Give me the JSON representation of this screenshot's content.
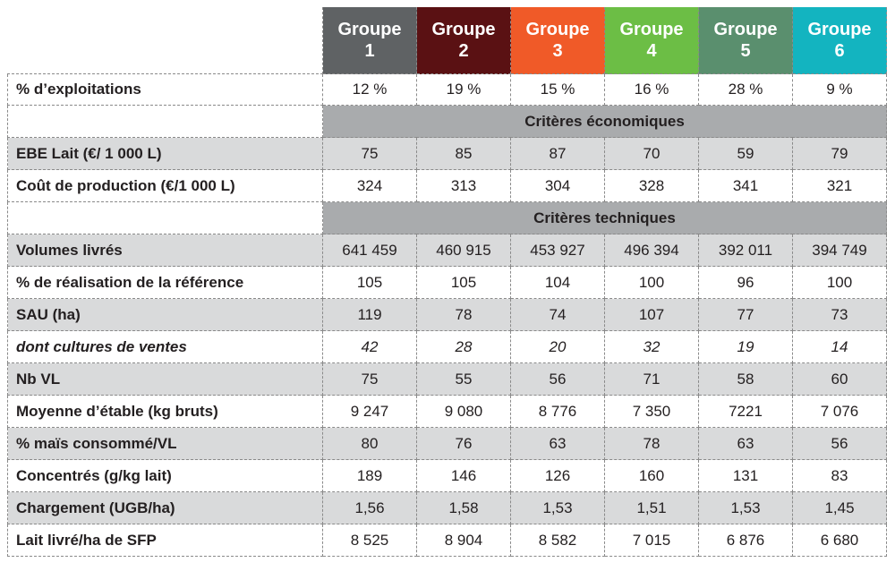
{
  "groups": [
    {
      "label": "Groupe 1",
      "line1": "Groupe",
      "line2": "1",
      "color": "#5f6264"
    },
    {
      "label": "Groupe 2",
      "line1": "Groupe",
      "line2": "2",
      "color": "#5a1113"
    },
    {
      "label": "Groupe 3",
      "line1": "Groupe",
      "line2": "3",
      "color": "#f05a28"
    },
    {
      "label": "Groupe 4",
      "line1": "Groupe",
      "line2": "4",
      "color": "#6cbe45"
    },
    {
      "label": "Groupe 5",
      "line1": "Groupe",
      "line2": "5",
      "color": "#5a8f6e"
    },
    {
      "label": "Groupe 6",
      "line1": "Groupe",
      "line2": "6",
      "color": "#13b4c0"
    }
  ],
  "rows": [
    {
      "type": "data",
      "label": "% d’exploitations",
      "values": [
        "12 %",
        "19 %",
        "15 %",
        "16 %",
        "28 %",
        "9 %"
      ],
      "grey": false
    },
    {
      "type": "section",
      "label": "Critères économiques"
    },
    {
      "type": "data",
      "label": "EBE Lait (€/ 1 000 L)",
      "values": [
        "75",
        "85",
        "87",
        "70",
        "59",
        "79"
      ],
      "grey": true
    },
    {
      "type": "data",
      "label": "Coût de production (€/1 000 L)",
      "values": [
        "324",
        "313",
        "304",
        "328",
        "341",
        "321"
      ],
      "grey": false
    },
    {
      "type": "section",
      "label": "Critères techniques"
    },
    {
      "type": "data",
      "label": "Volumes livrés",
      "values": [
        "641 459",
        "460 915",
        "453 927",
        "496 394",
        "392 011",
        "394 749"
      ],
      "grey": true
    },
    {
      "type": "data",
      "label": "% de réalisation de la référence",
      "values": [
        "105",
        "105",
        "104",
        "100",
        "96",
        "100"
      ],
      "grey": false
    },
    {
      "type": "data",
      "label": "SAU (ha)",
      "values": [
        "119",
        "78",
        "74",
        "107",
        "77",
        "73"
      ],
      "grey": true
    },
    {
      "type": "data",
      "label": "dont cultures de ventes",
      "values": [
        "42",
        "28",
        "20",
        "32",
        "19",
        "14"
      ],
      "grey": false,
      "italic": true
    },
    {
      "type": "data",
      "label": "Nb VL",
      "values": [
        "75",
        "55",
        "56",
        "71",
        "58",
        "60"
      ],
      "grey": true
    },
    {
      "type": "data",
      "label": "Moyenne d’étable (kg bruts)",
      "values": [
        "9 247",
        "9 080",
        "8 776",
        "7 350",
        "7221",
        "7 076"
      ],
      "grey": false
    },
    {
      "type": "data",
      "label": "% maïs consommé/VL",
      "values": [
        "80",
        "76",
        "63",
        "78",
        "63",
        "56"
      ],
      "grey": true
    },
    {
      "type": "data",
      "label": "Concentrés (g/kg lait)",
      "values": [
        "189",
        "146",
        "126",
        "160",
        "131",
        "83"
      ],
      "grey": false
    },
    {
      "type": "data",
      "label": "Chargement (UGB/ha)",
      "values": [
        "1,56",
        "1,58",
        "1,53",
        "1,51",
        "1,53",
        "1,45"
      ],
      "grey": true
    },
    {
      "type": "data",
      "label": "Lait livré/ha de SFP",
      "values": [
        "8 525",
        "8 904",
        "8 582",
        "7 015",
        "6 876",
        "6 680"
      ],
      "grey": false
    }
  ]
}
